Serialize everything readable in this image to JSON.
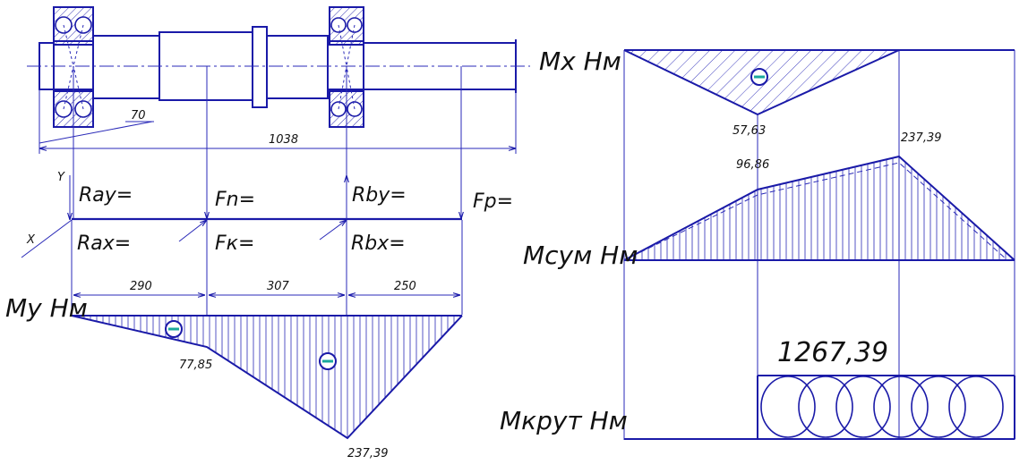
{
  "shaft": {
    "dims": {
      "d70": "70",
      "d1038": "1038",
      "d290": "290",
      "d307": "307",
      "d250": "250"
    },
    "axes": {
      "y": "Y",
      "x": "X"
    },
    "forces": {
      "ray": "Ray=",
      "rax": "Rax=",
      "fn": "Fn=",
      "fk": "Fк=",
      "rby": "Rby=",
      "rbx": "Rbx=",
      "fp": "Fр="
    }
  },
  "diagrams": {
    "my": {
      "label": "My Нм",
      "values": {
        "v1": "77,85",
        "v2": "237,39"
      },
      "sign": "−"
    },
    "mx": {
      "label": "Mx Нм",
      "values": {
        "v1": "57,63"
      },
      "sign": "−"
    },
    "msum": {
      "label": "Mсум Нм",
      "values": {
        "v1": "96,86",
        "v2": "237,39"
      }
    },
    "mkrut": {
      "label": "Mкрут Нм",
      "values": {
        "v1": "1267,39"
      }
    }
  },
  "colors": {
    "line": "#1a1aa8",
    "sign": "#1aa89c"
  }
}
